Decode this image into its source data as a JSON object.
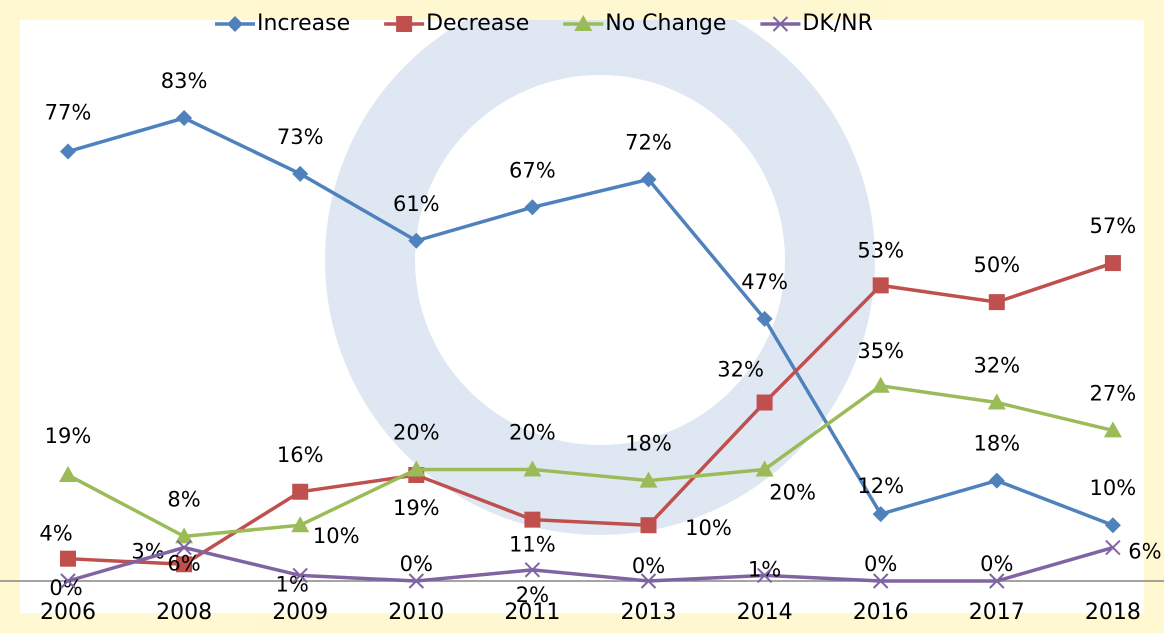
{
  "chart_data": {
    "type": "line",
    "categories": [
      "2006",
      "2008",
      "2009",
      "2010",
      "2011",
      "2013",
      "2014",
      "2016",
      "2017",
      "2018"
    ],
    "ylim": [
      0,
      90
    ],
    "legend": "top",
    "series": [
      {
        "name": "Increase",
        "color": "#4f81bd",
        "marker": "diamond",
        "values": [
          77,
          83,
          73,
          61,
          67,
          72,
          47,
          12,
          18,
          10
        ],
        "value_labels": [
          "77%",
          "83%",
          "73%",
          "61%",
          "67%",
          "72%",
          "47%",
          "12%",
          "18%",
          "10%"
        ]
      },
      {
        "name": "Decrease",
        "color": "#c0504d",
        "marker": "square",
        "values": [
          4,
          3,
          16,
          19,
          11,
          10,
          32,
          53,
          50,
          57
        ],
        "value_labels": [
          "4%",
          "3%",
          "16%",
          "19%",
          "11%",
          "10%",
          "32%",
          "53%",
          "50%",
          "57%"
        ]
      },
      {
        "name": "No Change",
        "color": "#9bbb59",
        "marker": "triangle",
        "values": [
          19,
          8,
          10,
          20,
          20,
          18,
          20,
          35,
          32,
          27
        ],
        "value_labels": [
          "19%",
          "8%",
          "10%",
          "20%",
          "20%",
          "18%",
          "20%",
          "35%",
          "32%",
          "27%"
        ]
      },
      {
        "name": "DK/NR",
        "color": "#8064a2",
        "marker": "x",
        "values": [
          0,
          6,
          1,
          0,
          2,
          0,
          1,
          0,
          0,
          6
        ],
        "value_labels": [
          "0%",
          "6%",
          "1%",
          "0%",
          "2%",
          "0%",
          "1%",
          "0%",
          "0%",
          "6%"
        ]
      }
    ]
  }
}
